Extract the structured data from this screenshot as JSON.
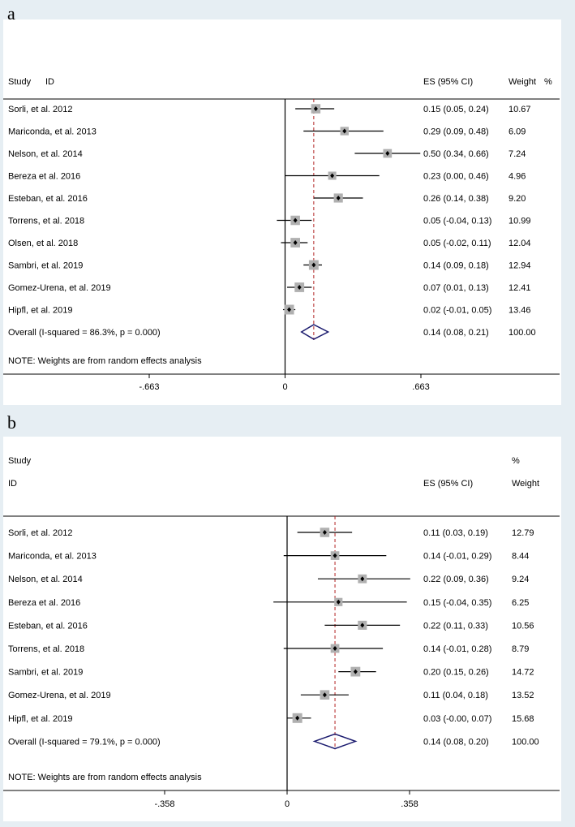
{
  "panels": [
    {
      "label": "a"
    },
    {
      "label": "b"
    }
  ],
  "chart_data": [
    {
      "type": "forest",
      "header": {
        "study": "Study",
        "id": "ID",
        "es": "ES (95% CI)",
        "weight": "Weight",
        "pct": "%"
      },
      "xlim": [
        -0.663,
        0.663
      ],
      "xticks": [
        "-.663",
        "0",
        ".663"
      ],
      "xtick_values": [
        -0.663,
        0,
        0.663
      ],
      "overall_line": 0.14,
      "studies": [
        {
          "label": "Sorli, et al. 2012",
          "es": 0.15,
          "lo": 0.05,
          "hi": 0.24,
          "es_text": "0.15 (0.05, 0.24)",
          "weight": 10.67,
          "weight_text": "10.67"
        },
        {
          "label": "Mariconda, et al. 2013",
          "es": 0.29,
          "lo": 0.09,
          "hi": 0.48,
          "es_text": "0.29 (0.09, 0.48)",
          "weight": 6.09,
          "weight_text": "6.09"
        },
        {
          "label": "Nelson, et al. 2014",
          "es": 0.5,
          "lo": 0.34,
          "hi": 0.66,
          "es_text": "0.50 (0.34, 0.66)",
          "weight": 7.24,
          "weight_text": "7.24"
        },
        {
          "label": "Bereza et al. 2016",
          "es": 0.23,
          "lo": 0.0,
          "hi": 0.46,
          "es_text": "0.23 (0.00, 0.46)",
          "weight": 4.96,
          "weight_text": "4.96"
        },
        {
          "label": "Esteban, et al. 2016",
          "es": 0.26,
          "lo": 0.14,
          "hi": 0.38,
          "es_text": "0.26 (0.14, 0.38)",
          "weight": 9.2,
          "weight_text": "9.20"
        },
        {
          "label": "Torrens, et al. 2018",
          "es": 0.05,
          "lo": -0.04,
          "hi": 0.13,
          "es_text": "0.05 (-0.04, 0.13)",
          "weight": 10.99,
          "weight_text": "10.99"
        },
        {
          "label": "Olsen, et al. 2018",
          "es": 0.05,
          "lo": -0.02,
          "hi": 0.11,
          "es_text": "0.05 (-0.02, 0.11)",
          "weight": 12.04,
          "weight_text": "12.04"
        },
        {
          "label": "Sambri, et al. 2019",
          "es": 0.14,
          "lo": 0.09,
          "hi": 0.18,
          "es_text": "0.14 (0.09, 0.18)",
          "weight": 12.94,
          "weight_text": "12.94"
        },
        {
          "label": "Gomez-Urena, et al. 2019",
          "es": 0.07,
          "lo": 0.01,
          "hi": 0.13,
          "es_text": "0.07 (0.01, 0.13)",
          "weight": 12.41,
          "weight_text": "12.41"
        },
        {
          "label": "Hipfl, et al. 2019",
          "es": 0.02,
          "lo": -0.01,
          "hi": 0.05,
          "es_text": "0.02 (-0.01, 0.05)",
          "weight": 13.46,
          "weight_text": "13.46"
        }
      ],
      "overall": {
        "label": "Overall  (I-squared = 86.3%, p = 0.000)",
        "es": 0.14,
        "lo": 0.08,
        "hi": 0.21,
        "es_text": "0.14 (0.08, 0.21)",
        "weight_text": "100.00"
      },
      "note": "NOTE: Weights are from random effects analysis",
      "colors": {
        "diamond": "#1a1a6e",
        "overall_line": "#b22222",
        "box": "#b0b0b0"
      }
    },
    {
      "type": "forest",
      "header": {
        "study": "Study",
        "id": "ID",
        "es": "ES (95% CI)",
        "weight": "Weight",
        "pct": "%"
      },
      "xlim": [
        -0.358,
        0.358
      ],
      "xticks": [
        "-.358",
        "0",
        ".358"
      ],
      "xtick_values": [
        -0.358,
        0,
        0.358
      ],
      "overall_line": 0.14,
      "studies": [
        {
          "label": "Sorli, et al. 2012",
          "es": 0.11,
          "lo": 0.03,
          "hi": 0.19,
          "es_text": "0.11 (0.03, 0.19)",
          "weight": 12.79,
          "weight_text": "12.79"
        },
        {
          "label": "Mariconda, et al. 2013",
          "es": 0.14,
          "lo": -0.01,
          "hi": 0.29,
          "es_text": "0.14 (-0.01, 0.29)",
          "weight": 8.44,
          "weight_text": "8.44"
        },
        {
          "label": "Nelson, et al. 2014",
          "es": 0.22,
          "lo": 0.09,
          "hi": 0.36,
          "es_text": "0.22 (0.09, 0.36)",
          "weight": 9.24,
          "weight_text": "9.24"
        },
        {
          "label": "Bereza et al. 2016",
          "es": 0.15,
          "lo": -0.04,
          "hi": 0.35,
          "es_text": "0.15 (-0.04, 0.35)",
          "weight": 6.25,
          "weight_text": "6.25"
        },
        {
          "label": "Esteban, et al. 2016",
          "es": 0.22,
          "lo": 0.11,
          "hi": 0.33,
          "es_text": "0.22 (0.11, 0.33)",
          "weight": 10.56,
          "weight_text": "10.56"
        },
        {
          "label": "Torrens, et al. 2018",
          "es": 0.14,
          "lo": -0.01,
          "hi": 0.28,
          "es_text": "0.14 (-0.01, 0.28)",
          "weight": 8.79,
          "weight_text": "8.79"
        },
        {
          "label": "Sambri, et al. 2019",
          "es": 0.2,
          "lo": 0.15,
          "hi": 0.26,
          "es_text": "0.20 (0.15, 0.26)",
          "weight": 14.72,
          "weight_text": "14.72"
        },
        {
          "label": "Gomez-Urena, et al. 2019",
          "es": 0.11,
          "lo": 0.04,
          "hi": 0.18,
          "es_text": "0.11 (0.04, 0.18)",
          "weight": 13.52,
          "weight_text": "13.52"
        },
        {
          "label": "Hipfl, et al. 2019",
          "es": 0.03,
          "lo": -0.0,
          "hi": 0.07,
          "es_text": "0.03 (-0.00, 0.07)",
          "weight": 15.68,
          "weight_text": "15.68"
        }
      ],
      "overall": {
        "label": "Overall  (I-squared = 79.1%, p = 0.000)",
        "es": 0.14,
        "lo": 0.08,
        "hi": 0.2,
        "es_text": "0.14 (0.08, 0.20)",
        "weight_text": "100.00"
      },
      "note": "NOTE: Weights are from random effects analysis",
      "colors": {
        "diamond": "#1a1a6e",
        "overall_line": "#b22222",
        "box": "#b0b0b0"
      }
    }
  ]
}
